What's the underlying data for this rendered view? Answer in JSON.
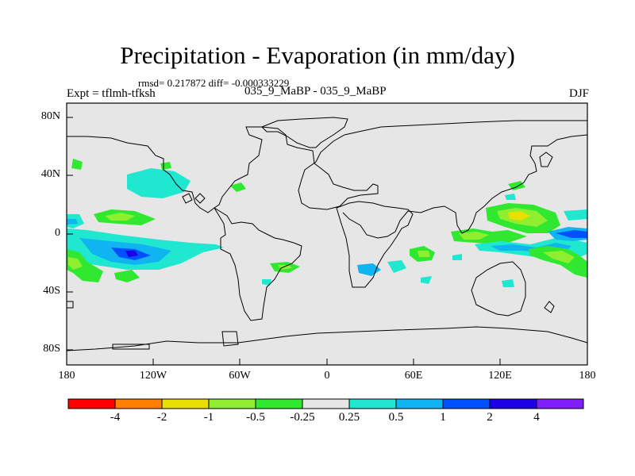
{
  "title": "Precipitation - Evaporation (in mm/day)",
  "stats": "rmsd= 0.217872 diff= -0.000333229",
  "expt_label": "Expt = tflmh-tfksh",
  "subtitle": "035_9_MaBP - 035_9_MaBP",
  "season": "DJF",
  "y_ticks": [
    "80N",
    "40N",
    "0",
    "40S",
    "80S"
  ],
  "x_ticks": [
    "180",
    "120W",
    "60W",
    "0",
    "60E",
    "120E",
    "180"
  ],
  "colorbar": {
    "labels": [
      "-4",
      "-2",
      "-1",
      "-0.5",
      "-0.25",
      "0.25",
      "0.5",
      "1",
      "2",
      "4"
    ],
    "colors": [
      "#ff0000",
      "#ff8000",
      "#e8e000",
      "#90ee30",
      "#30e830",
      "#e6e6e6",
      "#20e8d0",
      "#10b4f0",
      "#0050ff",
      "#1c00e8",
      "#8020ff"
    ]
  },
  "map_colors": {
    "background": "#e6e6e6",
    "land_outline": "#000000",
    "levels": {
      "-1": "#e8e000",
      "-0.5": "#90ee30",
      "-0.25": "#30e830",
      "0.25": "#20e8d0",
      "0.5": "#10b4f0",
      "1": "#0050ff",
      "2": "#1c00e8"
    }
  }
}
